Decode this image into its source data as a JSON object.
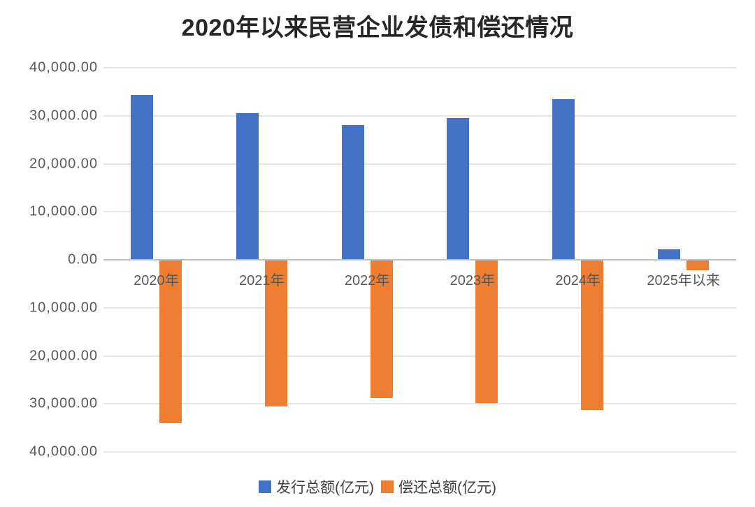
{
  "chart_data": {
    "type": "bar",
    "title": "2020年以来民营企业发债和偿还情况",
    "categories": [
      "2020年",
      "2021年",
      "2022年",
      "2023年",
      "2024年",
      "2025年以来"
    ],
    "series": [
      {
        "name": "发行总额(亿元)",
        "color": "#4472C4",
        "values": [
          34300,
          30500,
          28100,
          29500,
          33500,
          2250
        ]
      },
      {
        "name": "偿还总额(亿元)",
        "color": "#ED7D31",
        "values": [
          -34050,
          -30550,
          -28850,
          -29850,
          -31300,
          -2200
        ]
      }
    ],
    "y_axis": {
      "min": -40000,
      "max": 40000,
      "step": 10000,
      "tick_labels": [
        "40,000.00",
        "30,000.00",
        "20,000.00",
        "10,000.00",
        "0.00",
        "10,000.00",
        "20,000.00",
        "30,000.00",
        "40,000.00"
      ]
    },
    "grid": true,
    "legend_position": "bottom"
  }
}
